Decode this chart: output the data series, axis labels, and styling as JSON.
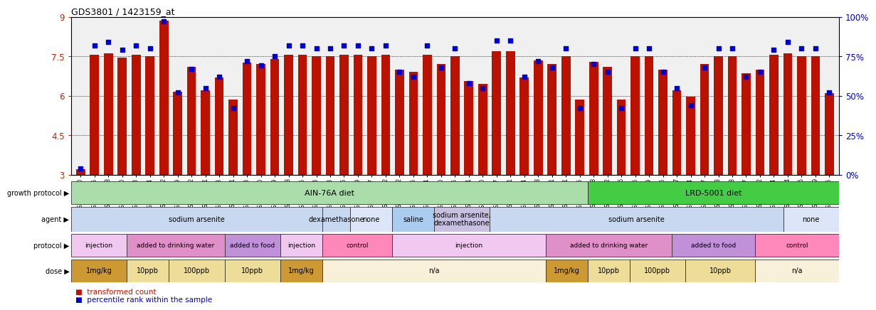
{
  "title": "GDS3801 / 1423159_at",
  "ylim": [
    3,
    9
  ],
  "yticks": [
    3,
    4.5,
    6,
    7.5,
    9
  ],
  "right_yticks": [
    0,
    25,
    50,
    75,
    100
  ],
  "bar_color": "#bb1100",
  "dot_color": "#0000cc",
  "samples": [
    "GSM279240",
    "GSM279245",
    "GSM279248",
    "GSM279250",
    "GSM279253",
    "GSM279234",
    "GSM279262",
    "GSM279269",
    "GSM279272",
    "GSM279231",
    "GSM279243",
    "GSM279261",
    "GSM279263",
    "GSM279230",
    "GSM279249",
    "GSM279258",
    "GSM279265",
    "GSM279273",
    "GSM279233",
    "GSM279236",
    "GSM279239",
    "GSM279247",
    "GSM279252",
    "GSM279232",
    "GSM279235",
    "GSM279264",
    "GSM279270",
    "GSM279275",
    "GSM279221",
    "GSM279260",
    "GSM279267",
    "GSM279271",
    "GSM279274",
    "GSM279238",
    "GSM279241",
    "GSM279251",
    "GSM279255",
    "GSM279268",
    "GSM279222",
    "GSM279226",
    "GSM279246",
    "GSM279259",
    "GSM279266",
    "GSM279227",
    "GSM279254",
    "GSM279257",
    "GSM279223",
    "GSM279228",
    "GSM279237",
    "GSM279242",
    "GSM279244",
    "GSM279224",
    "GSM279225",
    "GSM279229",
    "GSM279256"
  ],
  "bar_values": [
    3.2,
    7.55,
    7.6,
    7.45,
    7.55,
    7.5,
    8.85,
    6.15,
    7.1,
    6.2,
    6.7,
    5.85,
    7.25,
    7.2,
    7.4,
    7.55,
    7.55,
    7.5,
    7.5,
    7.55,
    7.55,
    7.5,
    7.55,
    7.0,
    6.9,
    7.55,
    7.2,
    7.5,
    6.55,
    6.45,
    7.7,
    7.7,
    6.7,
    7.35,
    7.2,
    7.5,
    5.85,
    7.3,
    7.1,
    5.85,
    7.5,
    7.5,
    7.0,
    6.2,
    5.95,
    7.2,
    7.5,
    7.5,
    6.85,
    7.0,
    7.55,
    7.6,
    7.5,
    7.5,
    6.1
  ],
  "dot_values": [
    4,
    82,
    84,
    79,
    82,
    80,
    97,
    52,
    67,
    55,
    62,
    42,
    72,
    69,
    75,
    82,
    82,
    80,
    80,
    82,
    82,
    80,
    82,
    65,
    62,
    82,
    68,
    80,
    58,
    55,
    85,
    85,
    62,
    72,
    68,
    80,
    42,
    70,
    65,
    42,
    80,
    80,
    65,
    55,
    44,
    68,
    80,
    80,
    62,
    65,
    79,
    84,
    80,
    80,
    52
  ],
  "growth_protocol_groups": [
    {
      "label": "AIN-76A diet",
      "start": 0,
      "end": 37,
      "color": "#aaddaa"
    },
    {
      "label": "LRD-5001 diet",
      "start": 37,
      "end": 55,
      "color": "#44cc44"
    }
  ],
  "agent_groups": [
    {
      "label": "sodium arsenite",
      "start": 0,
      "end": 18,
      "color": "#c8d8f0"
    },
    {
      "label": "dexamethasone",
      "start": 18,
      "end": 20,
      "color": "#c8d8f0"
    },
    {
      "label": "none",
      "start": 20,
      "end": 23,
      "color": "#dce6f8"
    },
    {
      "label": "saline",
      "start": 23,
      "end": 26,
      "color": "#aaccee"
    },
    {
      "label": "sodium arsenite,\ndexamethasone",
      "start": 26,
      "end": 30,
      "color": "#c8c0e0"
    },
    {
      "label": "sodium arsenite",
      "start": 30,
      "end": 51,
      "color": "#c8d8f0"
    },
    {
      "label": "none",
      "start": 51,
      "end": 55,
      "color": "#dce6f8"
    }
  ],
  "protocol_groups": [
    {
      "label": "injection",
      "start": 0,
      "end": 4,
      "color": "#f0c8f0"
    },
    {
      "label": "added to drinking water",
      "start": 4,
      "end": 11,
      "color": "#e090c8"
    },
    {
      "label": "added to food",
      "start": 11,
      "end": 15,
      "color": "#c090d8"
    },
    {
      "label": "injection",
      "start": 15,
      "end": 18,
      "color": "#f0c8f0"
    },
    {
      "label": "control",
      "start": 18,
      "end": 23,
      "color": "#ff88bb"
    },
    {
      "label": "injection",
      "start": 23,
      "end": 34,
      "color": "#f0c8f0"
    },
    {
      "label": "added to drinking water",
      "start": 34,
      "end": 43,
      "color": "#e090c8"
    },
    {
      "label": "added to food",
      "start": 43,
      "end": 49,
      "color": "#c090d8"
    },
    {
      "label": "control",
      "start": 49,
      "end": 55,
      "color": "#ff88bb"
    }
  ],
  "dose_groups": [
    {
      "label": "1mg/kg",
      "start": 0,
      "end": 4,
      "color": "#cc9933"
    },
    {
      "label": "10ppb",
      "start": 4,
      "end": 7,
      "color": "#eedd99"
    },
    {
      "label": "100ppb",
      "start": 7,
      "end": 11,
      "color": "#eedd99"
    },
    {
      "label": "10ppb",
      "start": 11,
      "end": 15,
      "color": "#eedd99"
    },
    {
      "label": "1mg/kg",
      "start": 15,
      "end": 18,
      "color": "#cc9933"
    },
    {
      "label": "n/a",
      "start": 18,
      "end": 34,
      "color": "#f8f0d8"
    },
    {
      "label": "1mg/kg",
      "start": 34,
      "end": 37,
      "color": "#cc9933"
    },
    {
      "label": "10ppb",
      "start": 37,
      "end": 40,
      "color": "#eedd99"
    },
    {
      "label": "100ppb",
      "start": 40,
      "end": 44,
      "color": "#eedd99"
    },
    {
      "label": "10ppb",
      "start": 44,
      "end": 49,
      "color": "#eedd99"
    },
    {
      "label": "n/a",
      "start": 49,
      "end": 55,
      "color": "#f8f0d8"
    }
  ],
  "row_labels": [
    "growth protocol",
    "agent",
    "protocol",
    "dose"
  ],
  "axis_label_color": "#cc2200",
  "right_axis_color": "#0000cc",
  "bg_color": "#f0f0f0"
}
